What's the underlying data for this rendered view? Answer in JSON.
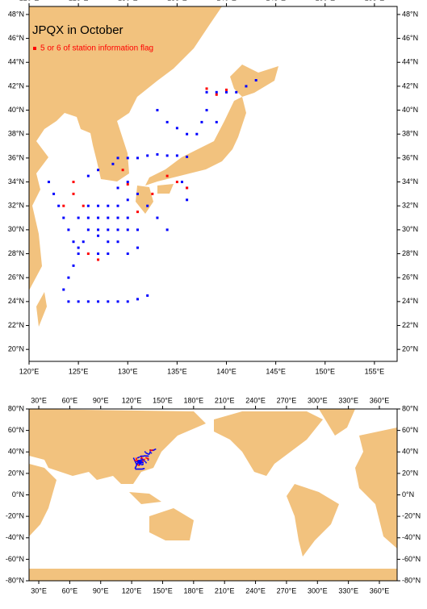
{
  "title": "JPQX in October",
  "legend": {
    "label": "5 or 6 of station information flag",
    "color": "#ff0000"
  },
  "stations": {
    "color": "#0000ff",
    "lon": [
      124,
      125,
      126,
      127,
      128,
      129,
      130,
      131,
      132,
      123.5,
      124,
      124.5,
      125,
      125.5,
      129,
      130,
      131,
      132,
      133,
      134,
      135,
      136,
      128.5,
      127,
      126,
      122,
      122.5,
      123,
      123.5,
      124,
      124.5,
      125,
      125,
      126,
      127,
      128,
      129,
      130,
      126,
      127,
      128,
      129,
      130,
      131,
      127,
      128,
      129,
      127,
      128,
      126,
      127,
      128,
      129,
      130,
      129,
      130,
      131,
      132,
      133,
      134,
      130,
      131,
      133,
      134,
      135,
      136,
      137,
      137.5,
      138,
      139,
      138,
      139,
      140,
      141,
      142,
      143,
      136,
      136,
      135.5
    ],
    "lat": [
      24,
      24,
      24,
      24,
      24,
      24,
      24,
      24.2,
      24.5,
      25,
      26,
      27,
      28,
      29,
      36,
      36,
      36,
      36.2,
      36.3,
      36.2,
      36.2,
      36.1,
      35.5,
      35,
      34.5,
      34,
      33,
      32,
      31,
      30,
      29,
      28.5,
      31,
      31,
      31,
      31,
      31,
      31,
      30,
      30,
      30,
      30,
      30,
      30,
      29.5,
      29,
      29,
      28,
      28,
      32,
      32,
      32,
      32,
      32.5,
      33.5,
      34,
      33,
      32,
      31,
      30,
      28,
      28.5,
      40,
      39,
      38.5,
      38,
      38,
      39,
      40,
      39,
      41.5,
      41.5,
      41.5,
      41.5,
      42,
      42.5,
      33.5,
      32.5,
      34
    ]
  },
  "flagged": {
    "lon": [
      124.5,
      124.5,
      123.5,
      125.5,
      126,
      127,
      130,
      131,
      132.5,
      134,
      135,
      136,
      138,
      139,
      140,
      129.5
    ],
    "lat": [
      33,
      34,
      32,
      32,
      28,
      27.5,
      33.8,
      31.5,
      33,
      34.5,
      34,
      33.5,
      41.8,
      41.3,
      41.7,
      35
    ]
  },
  "maps": [
    {
      "xlim": [
        120,
        157.3
      ],
      "ylim": [
        19,
        48.67
      ],
      "xticks": [
        {
          "value": 120,
          "label": "120°E"
        },
        {
          "value": 125,
          "label": "125°E"
        },
        {
          "value": 130,
          "label": "130°E"
        },
        {
          "value": 135,
          "label": "135°E"
        },
        {
          "value": 140,
          "label": "140°E"
        },
        {
          "value": 145,
          "label": "145°E"
        },
        {
          "value": 150,
          "label": "150°E"
        },
        {
          "value": 155,
          "label": "155°E"
        }
      ],
      "yticks": [
        {
          "value": 20,
          "label": "20°N"
        },
        {
          "value": 22,
          "label": "22°N"
        },
        {
          "value": 24,
          "label": "24°N"
        },
        {
          "value": 26,
          "label": "26°N"
        },
        {
          "value": 28,
          "label": "28°N"
        },
        {
          "value": 30,
          "label": "30°N"
        },
        {
          "value": 32,
          "label": "32°N"
        },
        {
          "value": 34,
          "label": "34°N"
        },
        {
          "value": 36,
          "label": "36°N"
        },
        {
          "value": 38,
          "label": "38°N"
        },
        {
          "value": 40,
          "label": "40°N"
        },
        {
          "value": 42,
          "label": "42°N"
        },
        {
          "value": 44,
          "label": "44°N"
        },
        {
          "value": 46,
          "label": "46°N"
        },
        {
          "value": 48,
          "label": "48°N"
        }
      ]
    },
    {
      "xlim": [
        20.6,
        377.2
      ],
      "ylim": [
        -80,
        80
      ],
      "xticks": [
        {
          "value": 30,
          "label": "30°E"
        },
        {
          "value": 60,
          "label": "60°E"
        },
        {
          "value": 90,
          "label": "90°E"
        },
        {
          "value": 120,
          "label": "120°E"
        },
        {
          "value": 150,
          "label": "150°E"
        },
        {
          "value": 180,
          "label": "180°E"
        },
        {
          "value": 210,
          "label": "210°E"
        },
        {
          "value": 240,
          "label": "240°E"
        },
        {
          "value": 270,
          "label": "270°E"
        },
        {
          "value": 300,
          "label": "300°E"
        },
        {
          "value": 330,
          "label": "330°E"
        },
        {
          "value": 360,
          "label": "360°E"
        }
      ],
      "yticks": [
        {
          "value": -80,
          "label": "-80°N"
        },
        {
          "value": -60,
          "label": "-60°N"
        },
        {
          "value": -40,
          "label": "-40°N"
        },
        {
          "value": -20,
          "label": "-20°N"
        },
        {
          "value": 0,
          "label": "0°N"
        },
        {
          "value": 20,
          "label": "20°N"
        },
        {
          "value": 40,
          "label": "40°N"
        },
        {
          "value": 60,
          "label": "60°N"
        },
        {
          "value": 80,
          "label": "80°N"
        }
      ]
    }
  ]
}
